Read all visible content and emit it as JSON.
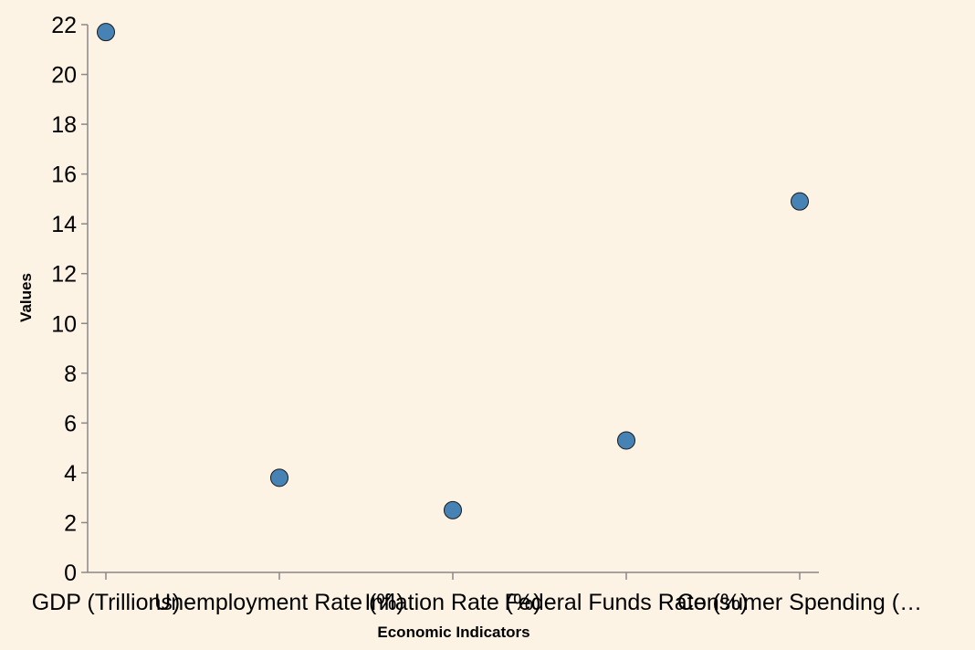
{
  "chart_data": {
    "type": "scatter",
    "xlabel": "Economic Indicators",
    "ylabel": "Values",
    "categories": [
      "GDP (Trillions)",
      "Unemployment Rate (%)",
      "Inflation Rate (%)",
      "Federal Funds Rate (%)",
      "Consumer Spending (…"
    ],
    "values": [
      21.7,
      3.8,
      2.5,
      5.3,
      14.9
    ],
    "ylim": [
      0,
      22
    ],
    "yticks": [
      0,
      2,
      4,
      6,
      8,
      10,
      12,
      14,
      16,
      18,
      20,
      22
    ],
    "grid": false,
    "colors": {
      "point": "#4682b4",
      "background": "#fdf3e5",
      "axis": "#888888"
    }
  }
}
